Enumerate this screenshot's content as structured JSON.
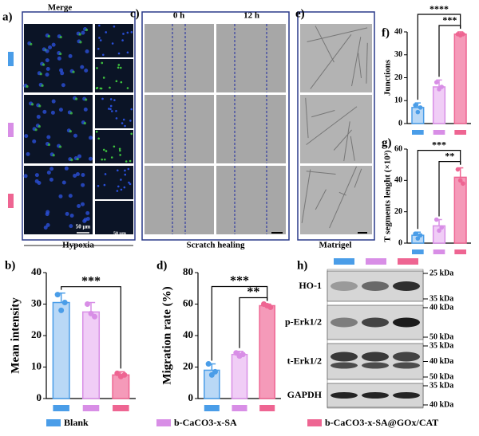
{
  "panels": {
    "a": {
      "label": "a)",
      "title": "Merge",
      "caption": "Hypoxia",
      "scale_big": "50 μm",
      "scale_small": "50 μm"
    },
    "c": {
      "label": "c)",
      "col1": "0 h",
      "col2": "12 h",
      "caption": "Scratch healing"
    },
    "e": {
      "label": "e)",
      "caption": "Matrigel"
    },
    "h": {
      "label": "h)",
      "blots": [
        {
          "name": "HO-1",
          "markers": [
            "25 kDa",
            "35 kDa"
          ]
        },
        {
          "name": "p-Erk1/2",
          "markers": [
            "40 kDa",
            "50 kDa"
          ]
        },
        {
          "name": "t-Erk1/2",
          "markers": [
            "35 kDa",
            "40 kDa",
            "50 kDa"
          ]
        },
        {
          "name": "GAPDH",
          "markers": [
            "35 kDa",
            "40 kDa"
          ]
        }
      ]
    }
  },
  "legend": [
    {
      "name": "Blank",
      "color": "#4a9de8",
      "fill": "#b9d8f6"
    },
    {
      "name": "b-CaCO3-x-SA",
      "color": "#d88ee6",
      "fill": "#f0cdf6"
    },
    {
      "name": "b-CaCO3-x-SA@GOx/CAT",
      "color": "#ee6592",
      "fill": "#f59ab9"
    }
  ],
  "chart_data": [
    {
      "type": "bar",
      "label": "b)",
      "y_label": "Mean intensity",
      "values": [
        30.5,
        27.5,
        7.5
      ],
      "errors": [
        3,
        3,
        1
      ],
      "points": [
        [
          33,
          28,
          30.5
        ],
        [
          30,
          27,
          26
        ],
        [
          8,
          7,
          7.5
        ]
      ],
      "ylim": [
        0,
        40
      ],
      "yticks": [
        0,
        10,
        20,
        30,
        40
      ],
      "annotations": [
        {
          "text": "***",
          "between": [
            0,
            2
          ]
        }
      ]
    },
    {
      "type": "bar",
      "label": "d)",
      "y_label": "Migration rate (%)",
      "values": [
        18,
        28,
        59
      ],
      "errors": [
        4,
        2,
        1
      ],
      "points": [
        [
          22,
          15,
          17
        ],
        [
          29,
          27,
          28
        ],
        [
          60,
          59,
          58
        ]
      ],
      "ylim": [
        0,
        80
      ],
      "yticks": [
        0,
        20,
        40,
        60,
        80
      ],
      "annotations": [
        {
          "text": "**",
          "between": [
            1,
            2
          ]
        },
        {
          "text": "***",
          "between": [
            0,
            2
          ]
        }
      ]
    },
    {
      "type": "bar",
      "label": "f)",
      "y_label": "Junctions",
      "values": [
        7,
        16,
        39
      ],
      "errors": [
        2,
        3,
        1
      ],
      "points": [
        [
          8,
          5,
          7
        ],
        [
          18,
          15,
          16
        ],
        [
          39,
          38.5,
          39
        ]
      ],
      "ylim": [
        0,
        40
      ],
      "yticks": [
        0,
        10,
        20,
        30,
        40
      ],
      "annotations": [
        {
          "text": "***",
          "between": [
            1,
            2
          ]
        },
        {
          "text": "****",
          "between": [
            0,
            2
          ]
        }
      ]
    },
    {
      "type": "bar",
      "label": "g)",
      "y_label": "T segments lenght (×10³)",
      "values": [
        5,
        11,
        42
      ],
      "errors": [
        2,
        4,
        6
      ],
      "points": [
        [
          6,
          3,
          5
        ],
        [
          15,
          8,
          10
        ],
        [
          47,
          40,
          38
        ]
      ],
      "ylim": [
        0,
        60
      ],
      "yticks": [
        0,
        20,
        40,
        60
      ],
      "annotations": [
        {
          "text": "**",
          "between": [
            1,
            2
          ]
        },
        {
          "text": "***",
          "between": [
            0,
            2
          ]
        }
      ]
    }
  ]
}
